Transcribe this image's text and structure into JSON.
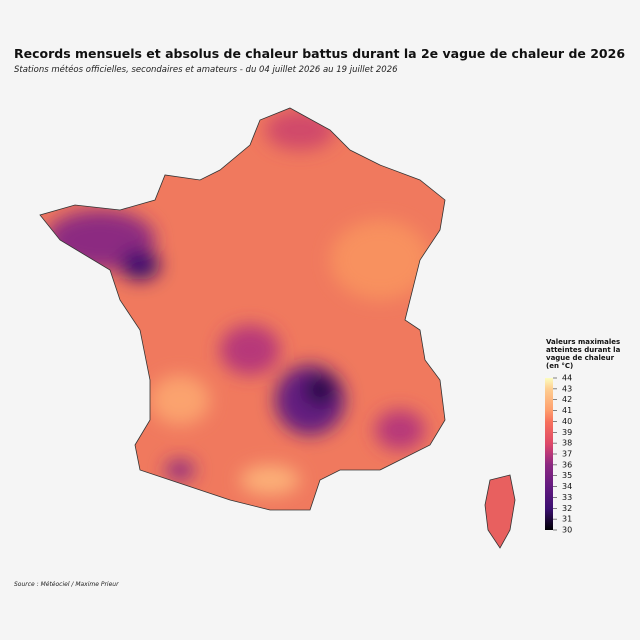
{
  "header": {
    "title": "Records mensuels et absolus de chaleur battus durant la 2e vague de chaleur de 2026",
    "subtitle": "Stations météos officielles, secondaires et amateurs - du 04 juillet 2026 au 19 juillet 2026"
  },
  "legend": {
    "title": "Valeurs maximales atteintes durant la vague de chaleur (en °C)",
    "range": [
      30,
      44
    ],
    "ticks": [
      30,
      31,
      32,
      33,
      34,
      35,
      36,
      37,
      38,
      39,
      40,
      41,
      42,
      43,
      44
    ]
  },
  "footer": {
    "source": "Source : Météociel / Maxime Prieur"
  }
}
